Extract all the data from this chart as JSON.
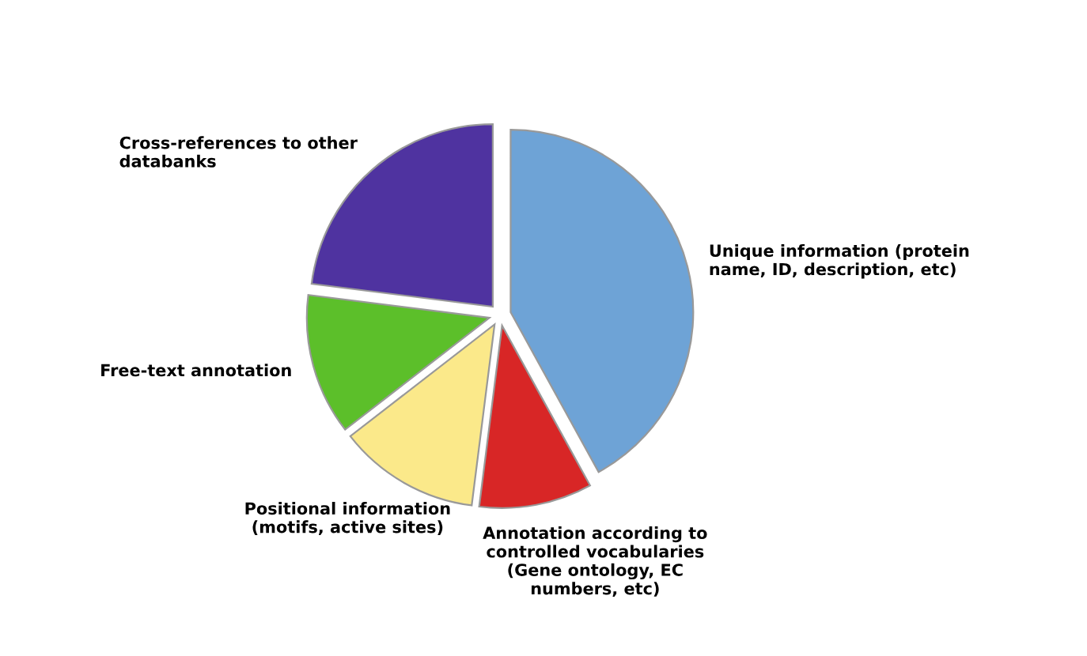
{
  "chart_data": {
    "type": "pie",
    "categories": [
      "Unique information (protein\nname, ID, description, etc)",
      "Annotation according to\ncontrolled vocabularies\n(Gene ontology, EC\nnumbers, etc)",
      "Positional information\n(motifs, active sites)",
      "Free-text annotation",
      "Cross-references to other\ndatabanks"
    ],
    "values": [
      42,
      10,
      12.5,
      12.5,
      23
    ],
    "colors": [
      "#6ea3d6",
      "#d82626",
      "#fbe98a",
      "#5cbf2a",
      "#4f33a0"
    ]
  }
}
